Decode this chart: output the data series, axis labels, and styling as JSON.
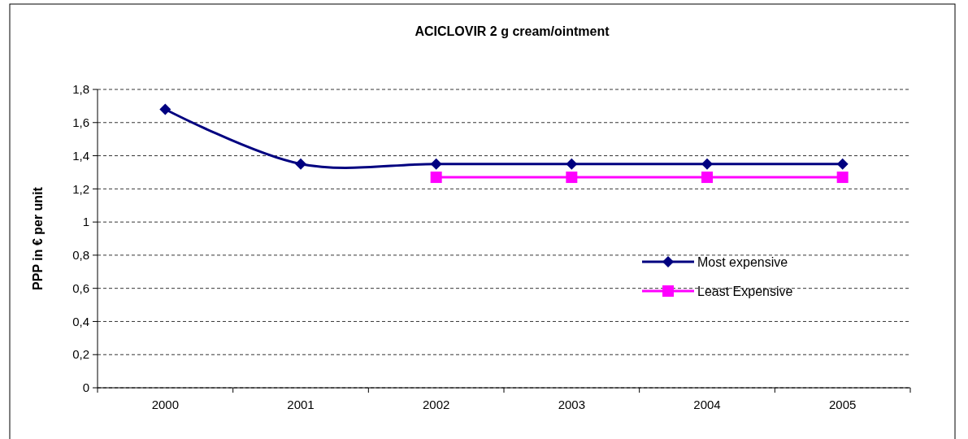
{
  "chart_data": {
    "type": "line",
    "title": "ACICLOVIR 2 g cream/ointment",
    "ylabel": "PPP in € per unit",
    "categories": [
      "2000",
      "2001",
      "2002",
      "2003",
      "2004",
      "2005"
    ],
    "series": [
      {
        "name": "Most expensive",
        "color": "#000080",
        "marker": "diamond",
        "values": [
          1.68,
          1.35,
          1.35,
          1.35,
          1.35,
          1.35
        ]
      },
      {
        "name": "Least Expensive",
        "color": "#ff00ff",
        "marker": "square",
        "values": [
          null,
          null,
          1.27,
          1.27,
          1.27,
          1.27
        ]
      }
    ],
    "ylim": [
      0,
      1.8
    ],
    "yticks": [
      0,
      {
        "value": 0.2,
        "label": "0,2"
      },
      {
        "value": 0.4,
        "label": "0,4"
      },
      {
        "value": 0.6,
        "label": "0,6"
      },
      {
        "value": 0.8,
        "label": "0,8"
      },
      1,
      {
        "value": 1.2,
        "label": "1,2"
      },
      {
        "value": 1.4,
        "label": "1,4"
      },
      {
        "value": 1.6,
        "label": "1,6"
      },
      {
        "value": 1.8,
        "label": "1,8"
      }
    ],
    "grid": "y",
    "legend": "right",
    "line_style": "solid"
  }
}
